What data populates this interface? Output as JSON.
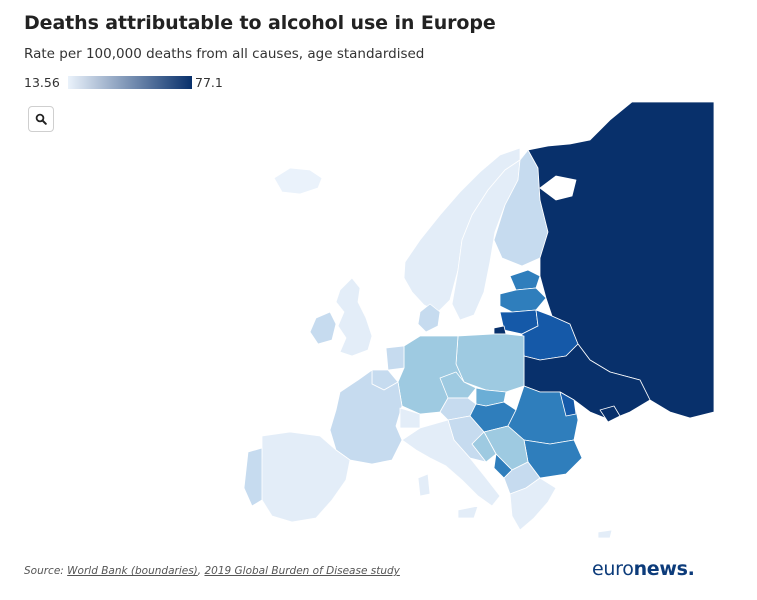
{
  "header": {
    "title": "Deaths attributable to alcohol use in Europe",
    "subtitle": "Rate per 100,000 deaths from all causes, age standardised"
  },
  "legend": {
    "min": "13.56",
    "max": "77.1",
    "color_low": "#eaf2fb",
    "color_high": "#08306b"
  },
  "controls": {
    "zoom_icon": "search-icon"
  },
  "map": {
    "color_scale": [
      "#eaf2fb",
      "#c6dbef",
      "#9ecae1",
      "#6baed6",
      "#2f7ebc",
      "#1559a8",
      "#08306b"
    ],
    "ocean": "#ffffff",
    "border": "#ffffff"
  },
  "footer": {
    "source_prefix": "Source: ",
    "source_link1": "World Bank (boundaries)",
    "source_sep": ", ",
    "source_link2": "2019 Global Burden of Disease study",
    "brand_light": "euro",
    "brand_bold": "news."
  }
}
